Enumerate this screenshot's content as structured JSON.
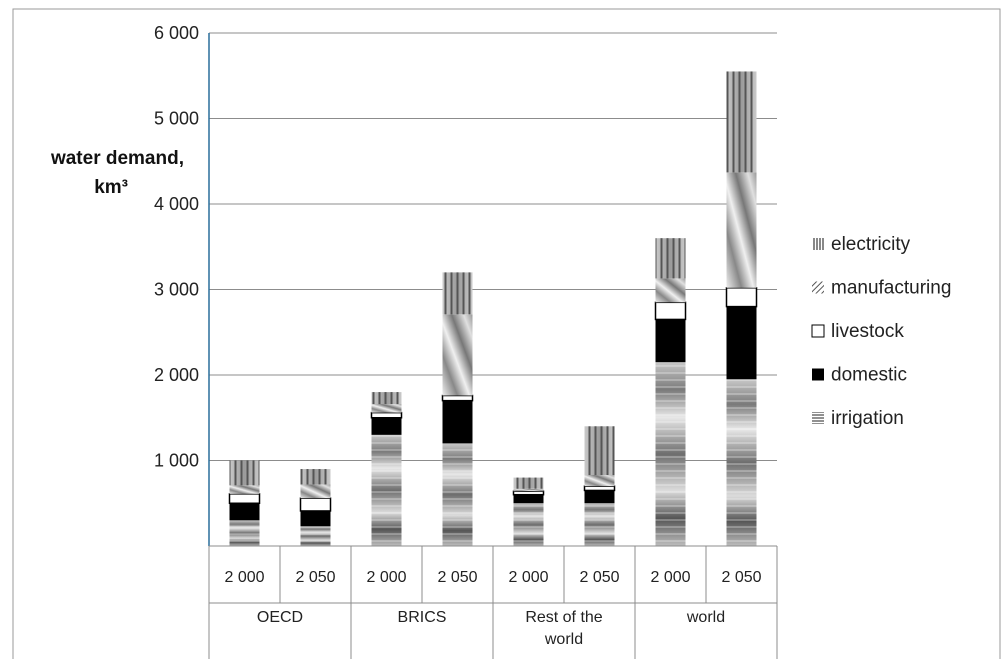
{
  "chart_data": {
    "type": "bar",
    "stacked": true,
    "ylabel": "water demand, km³",
    "ylabel_line1": "water demand,",
    "ylabel_line2": "km³",
    "ylim": [
      0,
      6000
    ],
    "yticks": [
      1000,
      2000,
      3000,
      4000,
      5000,
      6000
    ],
    "ytick_labels": [
      "1 000",
      "2 000",
      "3 000",
      "4 000",
      "5 000",
      "6 000"
    ],
    "grid": true,
    "legend_position": "right",
    "groups": [
      {
        "label": "OECD",
        "label_lines": [
          "OECD"
        ]
      },
      {
        "label": "BRICS",
        "label_lines": [
          "BRICS"
        ]
      },
      {
        "label": "Rest of the world",
        "label_lines": [
          "Rest of the",
          "world"
        ]
      },
      {
        "label": "world",
        "label_lines": [
          "world"
        ]
      }
    ],
    "categories": [
      "2 000",
      "2 050",
      "2 000",
      "2 050",
      "2 000",
      "2 050",
      "2 000",
      "2 050"
    ],
    "series": [
      {
        "name": "irrigation",
        "pattern": "horizontal-lines",
        "values": [
          300,
          230,
          1300,
          1200,
          500,
          500,
          2150,
          1950
        ]
      },
      {
        "name": "domestic",
        "pattern": "solid-black",
        "values": [
          200,
          180,
          200,
          500,
          100,
          150,
          500,
          850
        ]
      },
      {
        "name": "livestock",
        "pattern": "white",
        "values": [
          110,
          150,
          60,
          60,
          40,
          50,
          200,
          220
        ]
      },
      {
        "name": "manufacturing",
        "pattern": "diagonal-lines",
        "values": [
          100,
          160,
          100,
          950,
          30,
          130,
          280,
          1350
        ]
      },
      {
        "name": "electricity",
        "pattern": "vertical-lines",
        "values": [
          290,
          180,
          140,
          490,
          130,
          570,
          470,
          1180
        ]
      }
    ],
    "legend_order": [
      "electricity",
      "manufacturing",
      "livestock",
      "domestic",
      "irrigation"
    ]
  }
}
